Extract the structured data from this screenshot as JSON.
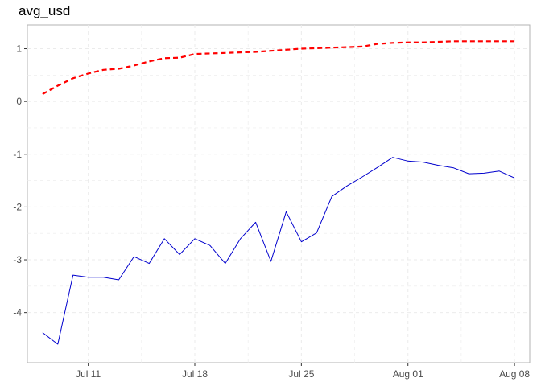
{
  "chart_data": {
    "type": "line",
    "title": "avg_usd",
    "xlabel": "",
    "ylabel": "",
    "x_ticks": [
      "Jul 11",
      "Jul 18",
      "Jul 25",
      "Aug 01",
      "Aug 08"
    ],
    "y_ticks": [
      "1",
      "0",
      "-1",
      "-2",
      "-3",
      "-4"
    ],
    "x_range": [
      "Jul 07",
      "Aug 09"
    ],
    "ylim": [
      -4.95,
      1.45
    ],
    "grid": true,
    "legend": "none",
    "x": [
      "Jul 08",
      "Jul 09",
      "Jul 10",
      "Jul 11",
      "Jul 12",
      "Jul 13",
      "Jul 14",
      "Jul 15",
      "Jul 16",
      "Jul 17",
      "Jul 18",
      "Jul 19",
      "Jul 20",
      "Jul 21",
      "Jul 22",
      "Jul 23",
      "Jul 24",
      "Jul 25",
      "Jul 26",
      "Jul 27",
      "Jul 28",
      "Jul 29",
      "Jul 30",
      "Jul 31",
      "Aug 01",
      "Aug 02",
      "Aug 03",
      "Aug 04",
      "Aug 05",
      "Aug 06",
      "Aug 07",
      "Aug 08"
    ],
    "series": [
      {
        "color": "#0000cd",
        "style": "solid",
        "values": [
          -4.38,
          -4.6,
          -3.29,
          -3.33,
          -3.33,
          -3.38,
          -2.94,
          -3.07,
          -2.6,
          -2.9,
          -2.6,
          -2.73,
          -3.07,
          -2.6,
          -2.29,
          -3.03,
          -2.09,
          -2.66,
          -2.49,
          -1.8,
          -1.6,
          -1.43,
          -1.25,
          -1.06,
          -1.13,
          -1.15,
          -1.21,
          -1.26,
          -1.37,
          -1.36,
          -1.32,
          -1.45
        ]
      },
      {
        "color": "#ff0000",
        "style": "dashed",
        "values": [
          0.14,
          0.3,
          0.44,
          0.53,
          0.6,
          0.62,
          0.68,
          0.76,
          0.82,
          0.83,
          0.9,
          0.91,
          0.92,
          0.93,
          0.94,
          0.96,
          0.98,
          1.0,
          1.01,
          1.02,
          1.03,
          1.04,
          1.09,
          1.11,
          1.12,
          1.12,
          1.13,
          1.14,
          1.14,
          1.14,
          1.14,
          1.14
        ]
      }
    ]
  }
}
